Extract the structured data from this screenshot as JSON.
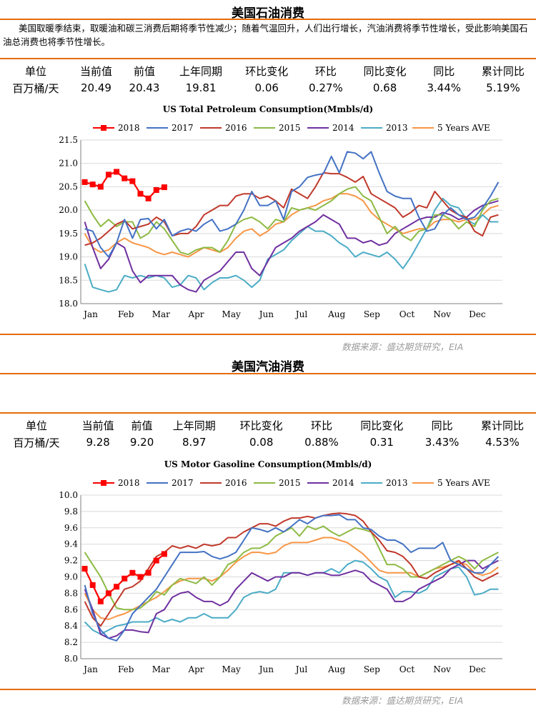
{
  "sections": [
    {
      "heading": "美国石油消费",
      "description": "美国取暖季结束，取暖油和碳三消费后期将季节性减少；随着气温回升，人们出行增长，汽油消费将季节性增长，受此影响美国石油总消费也将季节性增长。",
      "table": {
        "headers": [
          "单位",
          "当前值",
          "前值",
          "上年同期",
          "环比变化",
          "环比",
          "同比变化",
          "同比",
          "累计同比"
        ],
        "values": [
          "百万桶/天",
          "20.49",
          "20.43",
          "19.81",
          "0.06",
          "0.27%",
          "0.68",
          "3.44%",
          "5.19%"
        ]
      },
      "source": "数据来源：盛达期货研究，EIA",
      "chart_data": {
        "type": "line",
        "title": "US Total Petroleum Consumption(Mmbls/d)",
        "x_labels": [
          "Jan",
          "Feb",
          "Mar",
          "Apr",
          "May",
          "Jun",
          "Jul",
          "Aug",
          "Sep",
          "Oct",
          "Nov",
          "Dec"
        ],
        "x_unit": "week",
        "ylim": [
          18.0,
          21.5
        ],
        "y_ticks": [
          "18.0",
          "18.5",
          "19.0",
          "19.5",
          "20.0",
          "20.5",
          "21.0",
          "21.5"
        ],
        "grid": "horizontal",
        "legend_position": "top",
        "series": [
          {
            "name": "2018",
            "color": "#ff0000",
            "marker": "square",
            "values": [
              20.6,
              20.55,
              20.5,
              20.76,
              20.82,
              20.68,
              20.62,
              20.35,
              20.25,
              20.43,
              20.49
            ]
          },
          {
            "name": "2017",
            "color": "#4472c4",
            "values": [
              19.6,
              19.55,
              19.2,
              19.0,
              19.3,
              19.8,
              19.4,
              19.8,
              19.82,
              19.6,
              19.8,
              19.45,
              19.55,
              19.6,
              19.55,
              19.7,
              19.8,
              19.55,
              19.6,
              19.7,
              20.0,
              20.4,
              20.1,
              20.1,
              20.2,
              19.8,
              20.4,
              20.5,
              20.7,
              20.75,
              20.78,
              21.15,
              20.8,
              21.25,
              21.22,
              21.1,
              21.25,
              20.8,
              20.4,
              20.3,
              20.25,
              20.25,
              19.85,
              19.55,
              19.6,
              19.9,
              20.05,
              19.9,
              19.8,
              19.85,
              20.05,
              20.3,
              20.6
            ]
          },
          {
            "name": "2016",
            "color": "#c0392b",
            "values": [
              19.25,
              19.3,
              19.4,
              19.55,
              19.7,
              19.78,
              19.6,
              19.65,
              19.7,
              19.85,
              19.75,
              19.45,
              19.5,
              19.5,
              19.65,
              19.9,
              20.0,
              20.1,
              20.1,
              20.3,
              20.35,
              20.35,
              20.25,
              20.3,
              20.2,
              20.05,
              20.45,
              20.35,
              20.25,
              20.5,
              20.8,
              20.78,
              20.78,
              20.7,
              20.6,
              20.72,
              20.35,
              20.25,
              20.15,
              20.05,
              19.85,
              19.95,
              20.1,
              20.05,
              20.4,
              20.2,
              20.0,
              19.9,
              19.85,
              19.55,
              19.45,
              19.85,
              19.9
            ]
          },
          {
            "name": "2015",
            "color": "#8dba44",
            "values": [
              20.2,
              19.9,
              19.65,
              19.8,
              19.65,
              19.75,
              19.75,
              19.4,
              19.5,
              19.75,
              19.6,
              19.35,
              19.1,
              19.05,
              19.15,
              19.2,
              19.2,
              19.1,
              19.35,
              19.7,
              19.8,
              19.85,
              19.75,
              19.6,
              19.8,
              19.75,
              20.05,
              20.0,
              20.05,
              20.0,
              20.1,
              20.2,
              20.35,
              20.45,
              20.5,
              20.3,
              20.2,
              19.85,
              19.5,
              19.65,
              19.45,
              19.35,
              19.55,
              19.6,
              19.9,
              19.9,
              19.8,
              19.6,
              19.75,
              19.65,
              20.0,
              20.2,
              20.25
            ]
          },
          {
            "name": "2014",
            "color": "#7030a0",
            "values": [
              19.75,
              19.2,
              18.75,
              18.95,
              19.3,
              19.2,
              18.7,
              18.45,
              18.6,
              18.6,
              18.6,
              18.6,
              18.4,
              18.3,
              18.25,
              18.5,
              18.6,
              18.7,
              18.9,
              19.1,
              19.1,
              18.75,
              18.6,
              18.9,
              19.2,
              19.3,
              19.4,
              19.55,
              19.65,
              19.75,
              19.9,
              19.8,
              19.7,
              19.4,
              19.4,
              19.3,
              19.35,
              19.25,
              19.3,
              19.5,
              19.6,
              19.7,
              19.8,
              19.85,
              19.85,
              19.95,
              19.9,
              19.8,
              19.85,
              20.0,
              20.1,
              20.15,
              20.2
            ]
          },
          {
            "name": "2013",
            "color": "#4bacc6",
            "values": [
              18.85,
              18.35,
              18.3,
              18.25,
              18.3,
              18.6,
              18.55,
              18.6,
              18.55,
              18.6,
              18.55,
              18.35,
              18.4,
              18.6,
              18.55,
              18.3,
              18.45,
              18.55,
              18.55,
              18.6,
              18.5,
              18.35,
              18.5,
              18.95,
              19.05,
              19.15,
              19.35,
              19.5,
              19.65,
              19.55,
              19.55,
              19.45,
              19.3,
              19.2,
              19.0,
              19.1,
              19.05,
              19.0,
              19.1,
              18.95,
              18.75,
              19.0,
              19.3,
              19.6,
              20.0,
              20.25,
              20.1,
              20.05,
              19.8,
              19.7,
              19.9,
              19.75,
              19.75
            ]
          },
          {
            "name": "5 Years AVE",
            "color": "#f79646",
            "values": [
              19.5,
              19.2,
              19.1,
              19.15,
              19.3,
              19.4,
              19.3,
              19.25,
              19.2,
              19.1,
              19.05,
              19.1,
              19.05,
              19.0,
              19.1,
              19.2,
              19.15,
              19.1,
              19.2,
              19.4,
              19.55,
              19.6,
              19.45,
              19.55,
              19.7,
              19.75,
              19.9,
              20.0,
              20.05,
              20.1,
              20.2,
              20.25,
              20.35,
              20.35,
              20.3,
              20.2,
              19.95,
              19.8,
              19.7,
              19.6,
              19.5,
              19.55,
              19.6,
              19.6,
              19.75,
              19.8,
              19.8,
              19.75,
              19.8,
              19.8,
              19.9,
              20.05,
              20.1
            ]
          }
        ]
      }
    },
    {
      "heading": "美国汽油消费",
      "table": {
        "headers": [
          "单位",
          "当前值",
          "前值",
          "上年同期",
          "环比变化",
          "环比",
          "同比变化",
          "同比",
          "累计同比"
        ],
        "values": [
          "百万桶/天",
          "9.28",
          "9.20",
          "8.97",
          "0.08",
          "0.88%",
          "0.31",
          "3.43%",
          "4.53%"
        ]
      },
      "source": "数据来源：盛达期货研究，EIA",
      "chart_data": {
        "type": "line",
        "title": "US Motor Gasoline Consumption(Mmbls/d)",
        "x_labels": [
          "Jan",
          "Feb",
          "Mar",
          "Apr",
          "May",
          "Jun",
          "Jul",
          "Aug",
          "Sep",
          "Oct",
          "Nov",
          "Dec"
        ],
        "x_unit": "week",
        "ylim": [
          8.0,
          10.0
        ],
        "y_ticks": [
          "8.0",
          "8.2",
          "8.4",
          "8.6",
          "8.8",
          "9.0",
          "9.2",
          "9.4",
          "9.6",
          "9.8",
          "10.0"
        ],
        "grid": "horizontal",
        "legend_position": "top",
        "series": [
          {
            "name": "2018",
            "color": "#ff0000",
            "marker": "square",
            "values": [
              9.1,
              8.9,
              8.7,
              8.8,
              8.88,
              8.98,
              9.05,
              9.0,
              9.05,
              9.2,
              9.28
            ]
          },
          {
            "name": "2017",
            "color": "#4472c4",
            "values": [
              8.9,
              8.55,
              8.35,
              8.25,
              8.22,
              8.35,
              8.55,
              8.65,
              8.75,
              8.85,
              9.0,
              9.15,
              9.3,
              9.3,
              9.3,
              9.31,
              9.25,
              9.22,
              9.25,
              9.3,
              9.45,
              9.6,
              9.58,
              9.55,
              9.6,
              9.55,
              9.62,
              9.7,
              9.65,
              9.72,
              9.75,
              9.75,
              9.76,
              9.7,
              9.7,
              9.6,
              9.58,
              9.5,
              9.45,
              9.45,
              9.4,
              9.3,
              9.35,
              9.35,
              9.35,
              9.42,
              9.2,
              9.15,
              9.1,
              9.05,
              9.05,
              9.15,
              9.25
            ]
          },
          {
            "name": "2016",
            "color": "#c0392b",
            "values": [
              8.7,
              8.5,
              8.4,
              8.55,
              8.7,
              8.85,
              8.88,
              8.95,
              9.1,
              9.25,
              9.3,
              9.38,
              9.35,
              9.38,
              9.35,
              9.4,
              9.38,
              9.4,
              9.48,
              9.48,
              9.55,
              9.6,
              9.65,
              9.65,
              9.62,
              9.68,
              9.72,
              9.72,
              9.74,
              9.72,
              9.75,
              9.77,
              9.78,
              9.77,
              9.75,
              9.68,
              9.55,
              9.45,
              9.32,
              9.3,
              9.25,
              9.15,
              9.0,
              8.98,
              9.05,
              9.1,
              9.15,
              9.2,
              9.1,
              9.0,
              8.95,
              9.0,
              9.05
            ]
          },
          {
            "name": "2015",
            "color": "#8dba44",
            "values": [
              9.3,
              9.15,
              9.0,
              8.8,
              8.62,
              8.6,
              8.6,
              8.62,
              8.7,
              8.82,
              8.78,
              8.9,
              8.98,
              8.95,
              8.92,
              9.0,
              8.9,
              9.0,
              9.15,
              9.2,
              9.3,
              9.35,
              9.35,
              9.4,
              9.5,
              9.55,
              9.6,
              9.5,
              9.62,
              9.58,
              9.62,
              9.55,
              9.5,
              9.55,
              9.6,
              9.58,
              9.55,
              9.35,
              9.15,
              9.15,
              9.1,
              9.0,
              9.0,
              9.05,
              9.1,
              9.15,
              9.2,
              9.25,
              9.2,
              9.1,
              9.2,
              9.25,
              9.3
            ]
          },
          {
            "name": "2014",
            "color": "#7030a0",
            "values": [
              8.85,
              8.6,
              8.3,
              8.25,
              8.28,
              8.35,
              8.35,
              8.33,
              8.32,
              8.55,
              8.6,
              8.75,
              8.8,
              8.82,
              8.75,
              8.7,
              8.7,
              8.65,
              8.7,
              8.85,
              8.95,
              9.05,
              9.0,
              8.95,
              9.0,
              9.0,
              9.05,
              9.05,
              9.02,
              9.05,
              9.05,
              9.02,
              9.02,
              9.05,
              9.08,
              9.05,
              8.95,
              8.9,
              8.85,
              8.7,
              8.7,
              8.75,
              8.85,
              8.9,
              8.95,
              9.0,
              9.1,
              9.15,
              9.2,
              9.2,
              9.1,
              9.15,
              9.2
            ]
          },
          {
            "name": "2013",
            "color": "#4bacc6",
            "values": [
              8.45,
              8.35,
              8.3,
              8.35,
              8.4,
              8.42,
              8.45,
              8.45,
              8.45,
              8.5,
              8.45,
              8.48,
              8.45,
              8.5,
              8.5,
              8.55,
              8.5,
              8.5,
              8.5,
              8.6,
              8.75,
              8.8,
              8.82,
              8.8,
              8.85,
              9.05,
              9.05,
              9.05,
              9.02,
              9.05,
              9.05,
              9.1,
              9.05,
              9.15,
              9.2,
              9.18,
              9.1,
              9.0,
              8.95,
              8.75,
              8.82,
              8.82,
              8.8,
              8.85,
              9.0,
              9.05,
              9.1,
              9.12,
              9.0,
              8.78,
              8.8,
              8.85,
              8.85
            ]
          },
          {
            "name": "5 Years AVE",
            "color": "#f79646",
            "values": [
              8.8,
              8.6,
              8.5,
              8.48,
              8.52,
              8.55,
              8.6,
              8.65,
              8.7,
              8.75,
              8.82,
              8.9,
              8.95,
              8.98,
              8.98,
              8.98,
              8.95,
              9.0,
              9.08,
              9.18,
              9.25,
              9.3,
              9.3,
              9.28,
              9.3,
              9.38,
              9.42,
              9.42,
              9.42,
              9.45,
              9.48,
              9.48,
              9.45,
              9.42,
              9.35,
              9.28,
              9.18,
              9.08,
              9.05,
              9.05,
              9.05,
              9.05,
              9.0,
              9.05,
              9.1,
              9.12,
              9.15,
              9.18,
              9.15,
              9.05,
              9.02,
              9.05,
              9.12
            ]
          }
        ]
      }
    }
  ]
}
